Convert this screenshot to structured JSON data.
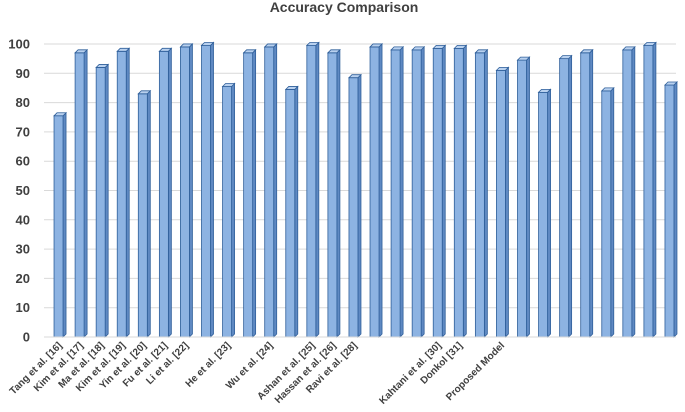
{
  "chart_data": {
    "type": "bar",
    "title": "Accuracy Comparison",
    "xlabel": "",
    "ylabel": "",
    "ylim": [
      0,
      100
    ],
    "yticks": [
      0,
      10,
      20,
      30,
      40,
      50,
      60,
      70,
      80,
      90,
      100
    ],
    "grid": true,
    "bar_color": "#8db3e2",
    "bar_edge_color": "#2f5f9a",
    "categories": [
      "Tang et al. [16]",
      "Kim et al. [17]",
      "Ma et al. [18]",
      "Kim et al. [19]",
      "Yin et al. [20]",
      "Fu et al. [21]",
      "Li et al. [22]",
      "",
      "He et al. [23]",
      "",
      "Wu et al. [24]",
      "",
      "Ashan et al. [25]",
      "Hassan et al. [26]",
      "Ravi et al. [28]",
      "",
      "",
      "",
      "Kahtani et al. [30]",
      "Donkol [31]",
      "",
      "Proposed Model",
      "",
      "",
      "",
      "",
      "",
      "",
      "",
      ""
    ],
    "values": [
      75.5,
      97,
      92,
      97.5,
      83,
      97.5,
      99,
      99.5,
      85.5,
      97,
      99,
      84.5,
      99.5,
      97,
      88.5,
      99,
      98,
      98,
      98.5,
      98.5,
      97,
      91,
      94.5,
      83.5,
      95,
      97,
      84,
      98,
      99.5,
      86
    ]
  }
}
